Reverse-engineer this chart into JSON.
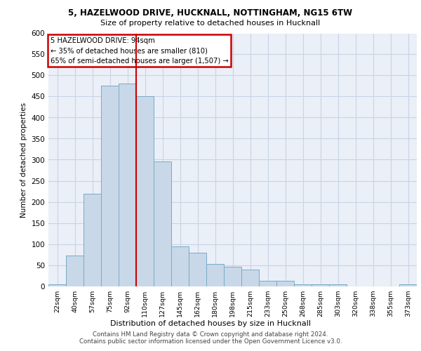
{
  "title_line1": "5, HAZELWOOD DRIVE, HUCKNALL, NOTTINGHAM, NG15 6TW",
  "title_line2": "Size of property relative to detached houses in Hucknall",
  "xlabel": "Distribution of detached houses by size in Hucknall",
  "ylabel": "Number of detached properties",
  "bar_labels": [
    "22sqm",
    "40sqm",
    "57sqm",
    "75sqm",
    "92sqm",
    "110sqm",
    "127sqm",
    "145sqm",
    "162sqm",
    "180sqm",
    "198sqm",
    "215sqm",
    "233sqm",
    "250sqm",
    "268sqm",
    "285sqm",
    "303sqm",
    "320sqm",
    "338sqm",
    "355sqm",
    "373sqm"
  ],
  "bar_values": [
    5,
    72,
    220,
    475,
    480,
    450,
    295,
    95,
    80,
    53,
    46,
    40,
    13,
    12,
    5,
    5,
    5,
    0,
    0,
    0,
    5
  ],
  "bar_color": "#c8d8e8",
  "bar_edge_color": "#7aaac8",
  "vline_x": 4.5,
  "vline_color": "#cc0000",
  "annotation_box_color": "#cc0000",
  "annotation_line1": "5 HAZELWOOD DRIVE: 94sqm",
  "annotation_line2": "← 35% of detached houses are smaller (810)",
  "annotation_line3": "65% of semi-detached houses are larger (1,507) →",
  "grid_color": "#c8d4e4",
  "bg_color": "#eaeff8",
  "ylim": [
    0,
    600
  ],
  "yticks": [
    0,
    50,
    100,
    150,
    200,
    250,
    300,
    350,
    400,
    450,
    500,
    550,
    600
  ],
  "footer_line1": "Contains HM Land Registry data © Crown copyright and database right 2024.",
  "footer_line2": "Contains public sector information licensed under the Open Government Licence v3.0."
}
